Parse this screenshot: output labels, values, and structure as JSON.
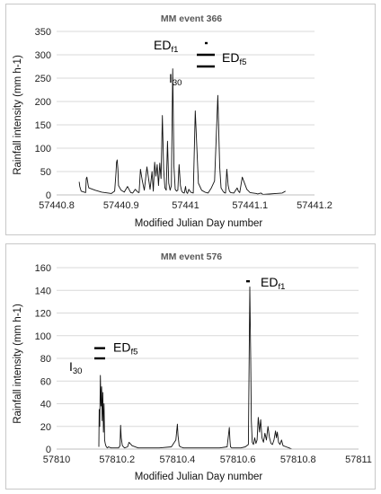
{
  "chart_data": [
    {
      "type": "line",
      "title": "MM event 366",
      "xlabel": "Modified Julian Day number",
      "ylabel": "Rainfall intensity (mm h-1)",
      "xlim": [
        57440.8,
        57441.2
      ],
      "ylim": [
        0,
        350
      ],
      "x_ticks": [
        "57440.8",
        "57440.9",
        "57441",
        "57441.1",
        "57441.2"
      ],
      "y_ticks": [
        "0",
        "50",
        "100",
        "150",
        "200",
        "250",
        "300",
        "350"
      ],
      "grid": "horizontal",
      "series": [
        {
          "x": [
            57440.835,
            57440.836,
            57440.838,
            57440.845,
            57440.846,
            57440.847,
            57440.848,
            57440.849,
            57440.85,
            57440.86,
            57440.87,
            57440.88,
            57440.885,
            57440.89,
            57440.892,
            57440.893,
            57440.894,
            57440.895,
            57440.896,
            57440.9,
            57440.905,
            57440.91,
            57440.913,
            57440.915,
            57440.918,
            57440.922,
            57440.926,
            57440.928,
            57440.93,
            57440.933,
            57440.936,
            57440.94,
            57440.945,
            57440.948,
            57440.95,
            57440.952,
            57440.954,
            57440.956,
            57440.958,
            57440.96,
            57440.962,
            57440.964,
            57440.966,
            57440.968,
            57440.97,
            57440.972,
            57440.974,
            57440.976,
            57440.978,
            57440.98,
            57440.982,
            57440.984,
            57440.986,
            57440.988,
            57440.99,
            57440.992,
            57440.994,
            57440.996,
            57440.998,
            57441.0,
            57441.001,
            57441.002,
            57441.003,
            57441.005,
            57441.008,
            57441.012,
            57441.015,
            57441.02,
            57441.025,
            57441.03,
            57441.035,
            57441.04,
            57441.045,
            57441.05,
            57441.053,
            57441.055,
            57441.058,
            57441.06,
            57441.062,
            57441.064,
            57441.066,
            57441.068,
            57441.07,
            57441.075,
            57441.08,
            57441.082,
            57441.084,
            57441.088,
            57441.095,
            57441.1,
            57441.105,
            57441.11,
            57441.112,
            57441.114,
            57441.117,
            57441.12,
            57441.13,
            57441.14,
            57441.15,
            57441.155
          ],
          "y": [
            28,
            18,
            8,
            5,
            35,
            38,
            30,
            20,
            15,
            10,
            6,
            4,
            3,
            8,
            45,
            70,
            75,
            55,
            20,
            10,
            6,
            18,
            10,
            5,
            4,
            12,
            6,
            5,
            55,
            30,
            10,
            60,
            12,
            50,
            8,
            70,
            40,
            65,
            20,
            68,
            35,
            170,
            55,
            15,
            10,
            115,
            25,
            10,
            20,
            270,
            60,
            12,
            8,
            10,
            65,
            20,
            8,
            5,
            4,
            18,
            8,
            5,
            3,
            12,
            6,
            4,
            180,
            25,
            10,
            6,
            4,
            15,
            30,
            213,
            60,
            15,
            8,
            5,
            4,
            55,
            20,
            8,
            5,
            4,
            15,
            8,
            5,
            38,
            12,
            5,
            4,
            3,
            2,
            3,
            4,
            1,
            2,
            3,
            4,
            8
          ],
          "color": "#111111"
        }
      ],
      "annotations": [
        {
          "label": "ED",
          "sub": "f1",
          "y": 325
        },
        {
          "label": "ED",
          "sub": "f5",
          "y": 300
        },
        {
          "label": "I",
          "sub": "30",
          "y": 275
        }
      ]
    },
    {
      "type": "line",
      "title": "MM event 576",
      "xlabel": "Modified Julian Day number",
      "ylabel": "Rainfall intensity (mm h-1)",
      "xlim": [
        57810,
        57811
      ],
      "ylim": [
        0,
        160
      ],
      "x_ticks": [
        "57810",
        "57810.2",
        "57810.4",
        "57810.6",
        "57810.8",
        "57811"
      ],
      "y_ticks": [
        "0",
        "20",
        "40",
        "60",
        "80",
        "100",
        "120",
        "140",
        "160"
      ],
      "grid": "horizontal",
      "series": [
        {
          "x": [
            57810.14,
            57810.141,
            57810.143,
            57810.145,
            57810.147,
            57810.149,
            57810.151,
            57810.153,
            57810.155,
            57810.157,
            57810.159,
            57810.161,
            57810.163,
            57810.165,
            57810.168,
            57810.172,
            57810.18,
            57810.195,
            57810.205,
            57810.21,
            57810.212,
            57810.214,
            57810.218,
            57810.225,
            57810.235,
            57810.24,
            57810.25,
            57810.27,
            57810.3,
            57810.34,
            57810.38,
            57810.395,
            57810.4,
            57810.402,
            57810.404,
            57810.406,
            57810.41,
            57810.42,
            57810.44,
            57810.47,
            57810.5,
            57810.54,
            57810.565,
            57810.572,
            57810.574,
            57810.576,
            57810.58,
            57810.59,
            57810.61,
            57810.625,
            57810.635,
            57810.64,
            57810.643,
            57810.645,
            57810.648,
            57810.652,
            57810.656,
            57810.66,
            57810.664,
            57810.668,
            57810.672,
            57810.676,
            57810.68,
            57810.685,
            57810.69,
            57810.695,
            57810.7,
            57810.705,
            57810.71,
            57810.715,
            57810.72,
            57810.725,
            57810.728,
            57810.731,
            57810.735,
            57810.74,
            57810.745,
            57810.75,
            57810.76,
            57810.77,
            57810.78
          ],
          "y": [
            2,
            35,
            20,
            65,
            38,
            55,
            25,
            50,
            15,
            40,
            8,
            5,
            3,
            2,
            1,
            2,
            1,
            1,
            1,
            3,
            21,
            10,
            3,
            1,
            2,
            6,
            3,
            1,
            1,
            1,
            2,
            8,
            22,
            12,
            8,
            3,
            2,
            1,
            1,
            1,
            1,
            1,
            2,
            19,
            8,
            2,
            1,
            1,
            1,
            2,
            4,
            143,
            80,
            25,
            6,
            4,
            10,
            5,
            8,
            28,
            15,
            26,
            10,
            6,
            14,
            8,
            20,
            10,
            5,
            4,
            8,
            16,
            10,
            15,
            6,
            4,
            8,
            3,
            2,
            1,
            0
          ],
          "color": "#111111"
        }
      ],
      "annotations": [
        {
          "label": "ED",
          "sub": "f1",
          "y": 148
        },
        {
          "label": "ED",
          "sub": "f5",
          "y": 89
        },
        {
          "label": "I",
          "sub": "30",
          "y": 80
        }
      ]
    }
  ]
}
